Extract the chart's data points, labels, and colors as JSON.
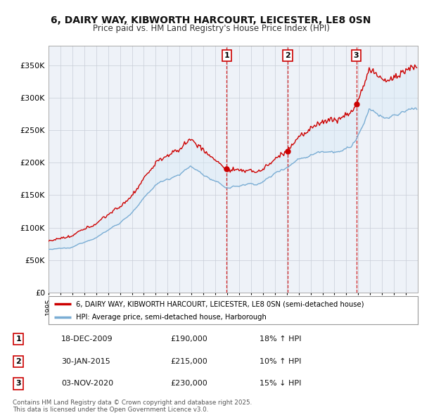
{
  "title": "6, DAIRY WAY, KIBWORTH HARCOURT, LEICESTER, LE8 0SN",
  "subtitle": "Price paid vs. HM Land Registry's House Price Index (HPI)",
  "legend_line1": "6, DAIRY WAY, KIBWORTH HARCOURT, LEICESTER, LE8 0SN (semi-detached house)",
  "legend_line2": "HPI: Average price, semi-detached house, Harborough",
  "footer": "Contains HM Land Registry data © Crown copyright and database right 2025.\nThis data is licensed under the Open Government Licence v3.0.",
  "transactions": [
    {
      "num": 1,
      "date": "18-DEC-2009",
      "price": "£190,000",
      "hpi": "18% ↑ HPI",
      "year": 2009.96
    },
    {
      "num": 2,
      "date": "30-JAN-2015",
      "price": "£215,000",
      "hpi": "10% ↑ HPI",
      "year": 2015.08
    },
    {
      "num": 3,
      "date": "03-NOV-2020",
      "price": "£230,000",
      "hpi": "15% ↓ HPI",
      "year": 2020.84
    }
  ],
  "trans_prices": [
    190000,
    215000,
    230000
  ],
  "price_color": "#cc0000",
  "hpi_color": "#7aadd4",
  "hpi_fill_color": "#d8eaf7",
  "background_color": "#eef2f8",
  "grid_color": "#c8cdd8",
  "vline_color": "#cc0000",
  "ylim": [
    0,
    380000
  ],
  "yticks": [
    0,
    50000,
    100000,
    150000,
    200000,
    250000,
    300000,
    350000
  ],
  "xstart": 1995,
  "xend": 2026
}
